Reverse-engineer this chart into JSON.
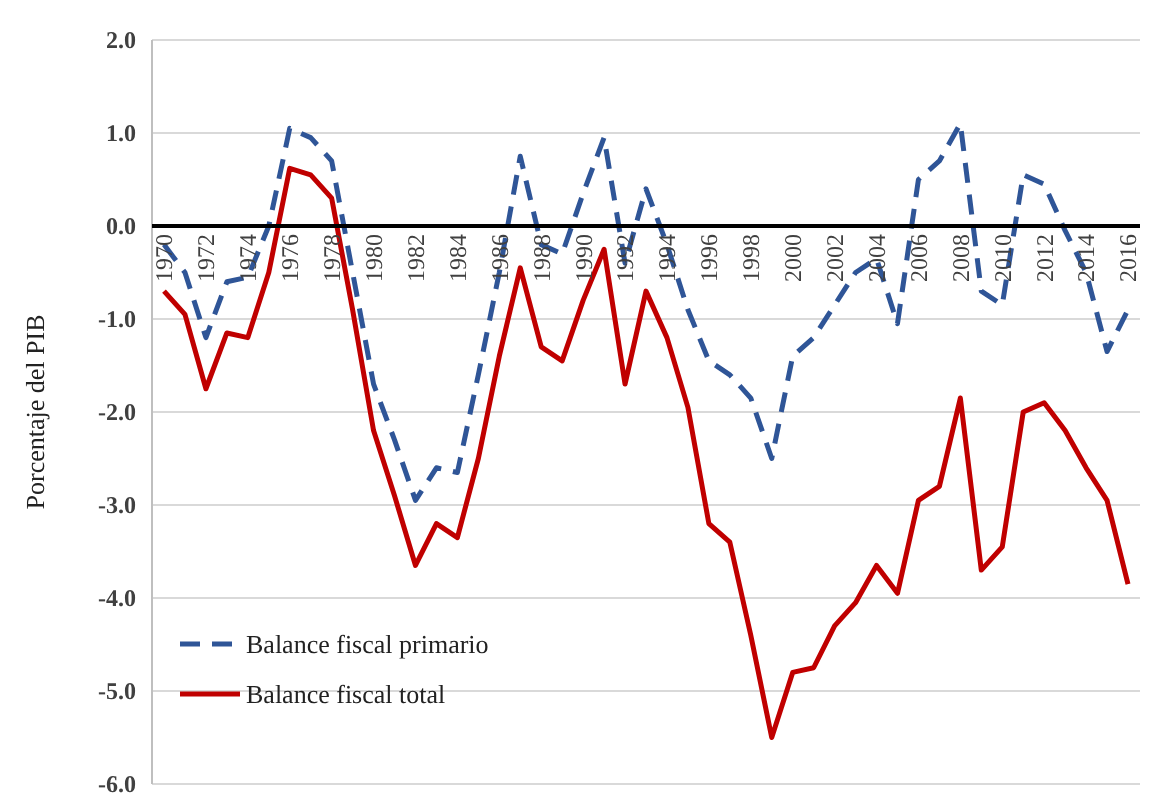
{
  "chart_data": {
    "type": "line",
    "ylabel": "Porcentaje del PIB",
    "categories": [
      "1970",
      null,
      "1972",
      null,
      "1974",
      null,
      "1976",
      null,
      "1978",
      null,
      "1980",
      null,
      "1982",
      null,
      "1984",
      null,
      "1986",
      null,
      "1988",
      null,
      "1990",
      null,
      "1992",
      null,
      "1994",
      null,
      "1996",
      null,
      "1998",
      null,
      "2000",
      null,
      "2002",
      null,
      "2004",
      null,
      "2006",
      null,
      "2008",
      null,
      "2010",
      null,
      "2012",
      null,
      "2014",
      null,
      "2016"
    ],
    "series": [
      {
        "name": "Balance fiscal primario",
        "color": "#2f5597",
        "line_style": "dashed",
        "values": [
          -0.2,
          -0.5,
          -1.2,
          -0.6,
          -0.55,
          0.0,
          1.05,
          0.95,
          0.7,
          -0.5,
          -1.7,
          -2.3,
          -2.95,
          -2.6,
          -2.65,
          -1.6,
          -0.5,
          0.75,
          -0.2,
          -0.3,
          0.35,
          0.95,
          -0.4,
          0.4,
          -0.2,
          -0.9,
          -1.45,
          -1.6,
          -1.85,
          -2.5,
          -1.4,
          -1.2,
          -0.85,
          -0.5,
          -0.35,
          -1.05,
          0.5,
          0.7,
          1.1,
          -0.7,
          -0.85,
          0.55,
          0.45,
          -0.05,
          -0.5,
          -1.35,
          -0.9
        ]
      },
      {
        "name": "Balance fiscal total",
        "color": "#c00000",
        "line_style": "solid",
        "values": [
          -0.7,
          -0.95,
          -1.75,
          -1.15,
          -1.2,
          -0.5,
          0.62,
          0.55,
          0.3,
          -0.9,
          -2.2,
          -2.9,
          -3.65,
          -3.2,
          -3.35,
          -2.5,
          -1.4,
          -0.45,
          -1.3,
          -1.45,
          -0.8,
          -0.25,
          -1.7,
          -0.7,
          -1.2,
          -1.95,
          -3.2,
          -3.4,
          -4.4,
          -5.5,
          -4.8,
          -4.75,
          -4.3,
          -4.05,
          -3.65,
          -3.95,
          -2.95,
          -2.8,
          -1.85,
          -3.7,
          -3.45,
          -2.0,
          -1.9,
          -2.2,
          -2.6,
          -2.95,
          -3.85
        ]
      }
    ],
    "ylim": [
      -6,
      2
    ],
    "yticks": [
      {
        "value": 2,
        "label": "2.0"
      },
      {
        "value": 1,
        "label": "1.0"
      },
      {
        "value": 0,
        "label": "0.0"
      },
      {
        "value": -1,
        "label": "-1.0"
      },
      {
        "value": -2,
        "label": "-2.0"
      },
      {
        "value": -3,
        "label": "-3.0"
      },
      {
        "value": -4,
        "label": "-4.0"
      },
      {
        "value": -5,
        "label": "-5.0"
      },
      {
        "value": -6,
        "label": "-6.0"
      }
    ],
    "grid": "y",
    "legend": "bottom left",
    "marker": "none"
  }
}
